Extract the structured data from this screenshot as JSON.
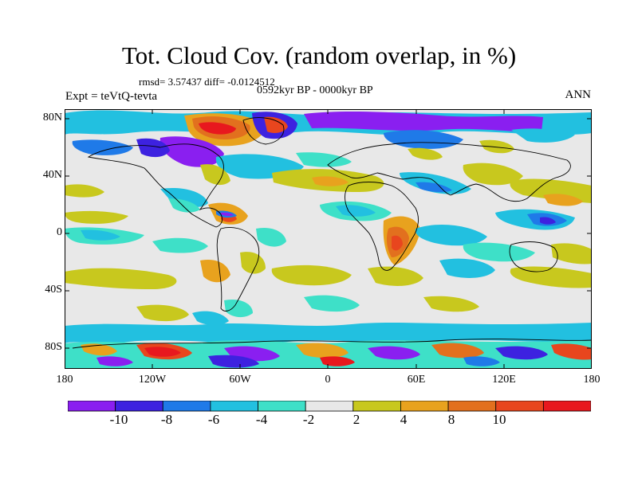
{
  "title": "Tot. Cloud Cov. (random overlap, in %)",
  "stats": "rmsd= 3.57437 diff= -0.0124512",
  "period": "0592kyr BP - 0000kyr BP",
  "experiment": "Expt = teVtQ-tevta",
  "season": "ANN",
  "lat_labels": [
    "80N",
    "40N",
    "0",
    "40S",
    "80S"
  ],
  "lon_labels": [
    "180",
    "120W",
    "60W",
    "0",
    "60E",
    "120E",
    "180"
  ],
  "colorbar": {
    "colors": [
      "#8a1ff0",
      "#3d22e0",
      "#1f7ae8",
      "#22c0e0",
      "#3ee0c8",
      "#e8e8e8",
      "#c8c81e",
      "#e8a21e",
      "#e2701e",
      "#e8461e",
      "#e8181e"
    ],
    "labels": [
      "-10",
      "-8",
      "-6",
      "-4",
      "-2",
      "2",
      "4",
      "8",
      "10"
    ]
  },
  "land_color": "#e8e8e8",
  "ocean_color": "#e8e8e8"
}
